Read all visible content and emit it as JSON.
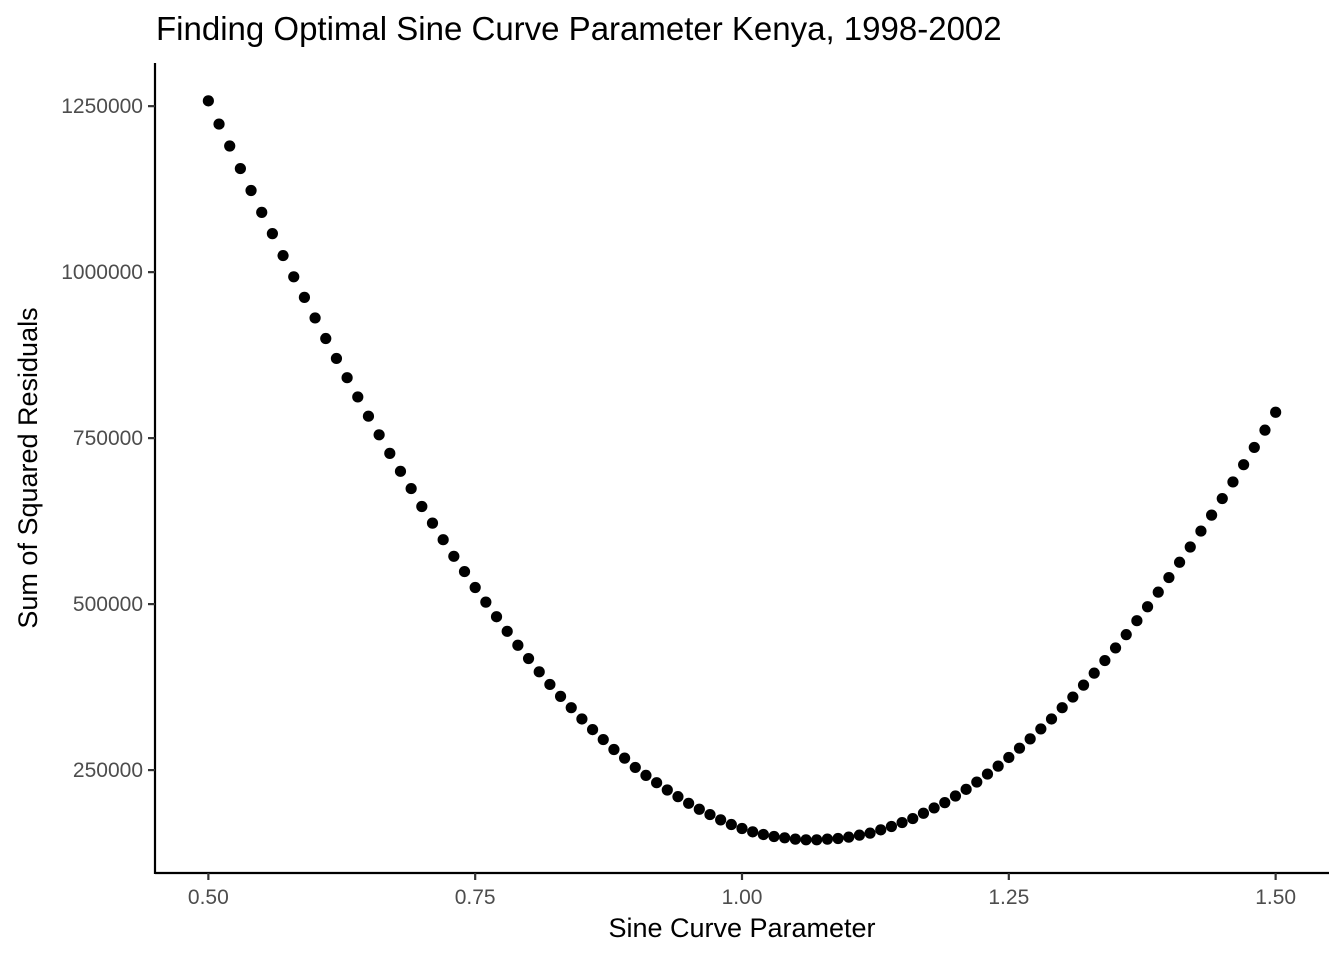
{
  "chart_data": {
    "type": "scatter",
    "title": "Finding Optimal Sine Curve Parameter Kenya, 1998-2002",
    "xlabel": "Sine Curve Parameter",
    "ylabel": "Sum of Squared Residuals",
    "xlim": [
      0.45,
      1.55
    ],
    "ylim": [
      95000,
      1315000
    ],
    "x_ticks": [
      0.5,
      0.75,
      1.0,
      1.25,
      1.5
    ],
    "x_tick_labels": [
      "0.50",
      "0.75",
      "1.00",
      "1.25",
      "1.50"
    ],
    "y_ticks": [
      250000,
      500000,
      750000,
      1000000,
      1250000
    ],
    "y_tick_labels": [
      "250000",
      "500000",
      "750000",
      "1000000",
      "1250000"
    ],
    "grid": false,
    "point_color": "#000000",
    "series": [
      {
        "x": [
          0.5,
          0.51,
          0.52,
          0.53,
          0.54,
          0.55,
          0.56,
          0.57,
          0.58,
          0.59,
          0.6,
          0.61,
          0.62,
          0.63,
          0.64,
          0.65,
          0.66,
          0.67,
          0.68,
          0.69,
          0.7,
          0.71,
          0.72,
          0.73,
          0.74,
          0.75,
          0.76,
          0.77,
          0.78,
          0.79,
          0.8,
          0.81,
          0.82,
          0.83,
          0.84,
          0.85,
          0.86,
          0.87,
          0.88,
          0.89,
          0.9,
          0.91,
          0.92,
          0.93,
          0.94,
          0.95,
          0.96,
          0.97,
          0.98,
          0.99,
          1.0,
          1.01,
          1.02,
          1.03,
          1.04,
          1.05,
          1.06,
          1.07,
          1.08,
          1.09,
          1.1,
          1.11,
          1.12,
          1.13,
          1.14,
          1.15,
          1.16,
          1.17,
          1.18,
          1.19,
          1.2,
          1.21,
          1.22,
          1.23,
          1.24,
          1.25,
          1.26,
          1.27,
          1.28,
          1.29,
          1.3,
          1.31,
          1.32,
          1.33,
          1.34,
          1.35,
          1.36,
          1.37,
          1.38,
          1.39,
          1.4,
          1.41,
          1.42,
          1.43,
          1.44,
          1.45,
          1.46,
          1.47,
          1.48,
          1.49,
          1.5
        ],
        "y": [
          1258000,
          1223000,
          1190000,
          1156000,
          1123000,
          1090000,
          1058000,
          1025000,
          993000,
          962000,
          931000,
          900000,
          870000,
          841000,
          812000,
          783000,
          755000,
          727000,
          700000,
          674000,
          647000,
          622000,
          597000,
          572000,
          549000,
          525000,
          503000,
          481000,
          459000,
          438000,
          418000,
          398000,
          379000,
          361000,
          344000,
          327000,
          311000,
          296000,
          281000,
          268000,
          254000,
          242000,
          231000,
          220000,
          210000,
          200000,
          191000,
          183000,
          175000,
          168000,
          162000,
          157000,
          153000,
          150000,
          148000,
          146000,
          145000,
          145000,
          146000,
          147000,
          149000,
          152000,
          155000,
          160000,
          165000,
          171000,
          177000,
          185000,
          193000,
          201000,
          211000,
          221000,
          232000,
          244000,
          256000,
          269000,
          283000,
          297000,
          312000,
          327000,
          344000,
          360000,
          378000,
          396000,
          415000,
          434000,
          454000,
          475000,
          496000,
          518000,
          540000,
          563000,
          586000,
          610000,
          634000,
          659000,
          684000,
          710000,
          736000,
          762000,
          789000
        ]
      }
    ]
  }
}
